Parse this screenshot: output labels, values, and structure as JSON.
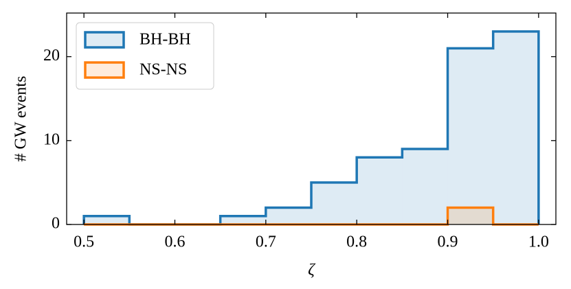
{
  "chart_data": {
    "type": "histogram",
    "x_label": "ζ",
    "y_label": "# GW events",
    "bins": [
      0.5,
      0.55,
      0.6,
      0.65,
      0.7,
      0.75,
      0.8,
      0.85,
      0.9,
      0.95,
      1.0
    ],
    "series": [
      {
        "name": "BH-BH",
        "color": "#1f77b4",
        "values": [
          1,
          0,
          0,
          1,
          2,
          5,
          8,
          9,
          21,
          23
        ]
      },
      {
        "name": "NS-NS",
        "color": "#ff7f0e",
        "values": [
          0,
          0,
          0,
          0,
          0,
          0,
          0,
          0,
          2,
          0
        ]
      }
    ],
    "xlim": [
      0.481,
      1.019
    ],
    "ylim": [
      0,
      25.2
    ],
    "xticks": [
      0.5,
      0.6,
      0.7,
      0.8,
      0.9,
      {
        "value": 1.0,
        "label": "1.0"
      }
    ],
    "yticks": [
      0,
      10,
      20
    ],
    "legend": "upper left"
  }
}
